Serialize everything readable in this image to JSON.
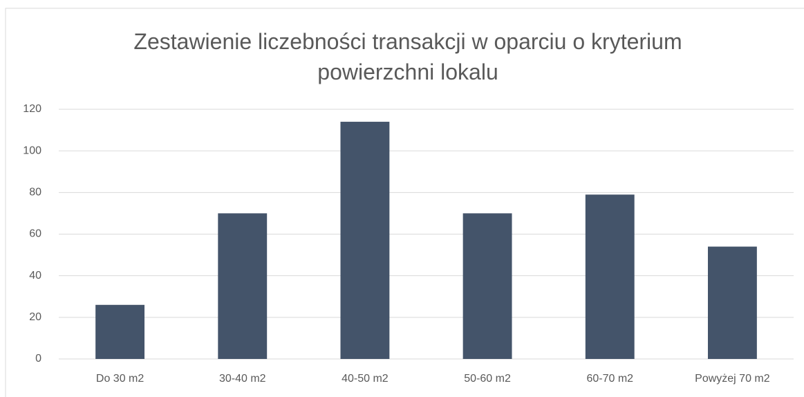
{
  "chart_data": {
    "type": "bar",
    "title": "Zestawienie liczebności transakcji w oparciu o kryterium powierzchni lokalu",
    "categories": [
      "Do 30 m2",
      "30-40 m2",
      "40-50 m2",
      "50-60 m2",
      "60-70 m2",
      "Powyżej 70 m2"
    ],
    "values": [
      26,
      70,
      114,
      70,
      79,
      54
    ],
    "color": "#44546a",
    "ylim": [
      0,
      120
    ],
    "yticks": [
      0,
      20,
      40,
      60,
      80,
      100,
      120
    ],
    "grid": true
  }
}
